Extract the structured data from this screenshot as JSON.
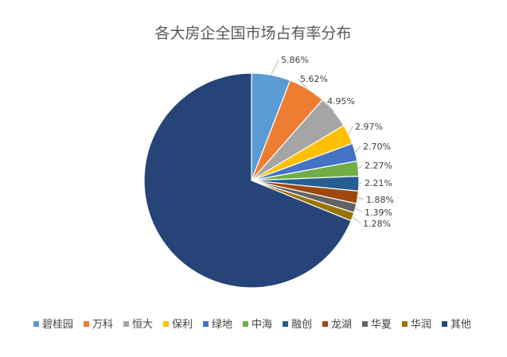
{
  "chart_data": {
    "type": "pie",
    "title": "各大房企全国市场占有率分布",
    "legend_position": "bottom",
    "start_angle": "12 o'clock, clockwise",
    "categories": [
      "碧桂园",
      "万科",
      "恒大",
      "保利",
      "绿地",
      "中海",
      "融创",
      "龙湖",
      "华夏",
      "华润",
      "其他"
    ],
    "values": [
      5.86,
      5.62,
      4.95,
      2.97,
      2.7,
      2.27,
      2.21,
      1.88,
      1.39,
      1.28,
      68.87
    ],
    "data_labels": [
      "5.86%",
      "5.62%",
      "4.95%",
      "2.97%",
      "2.70%",
      "2.27%",
      "2.21%",
      "1.88%",
      "1.39%",
      "1.28%",
      ""
    ],
    "colors": [
      "#5B9BD5",
      "#ED7D31",
      "#A5A5A5",
      "#FFC000",
      "#4472C4",
      "#70AD47",
      "#255E91",
      "#9E480E",
      "#636363",
      "#997300",
      "#264478"
    ]
  }
}
